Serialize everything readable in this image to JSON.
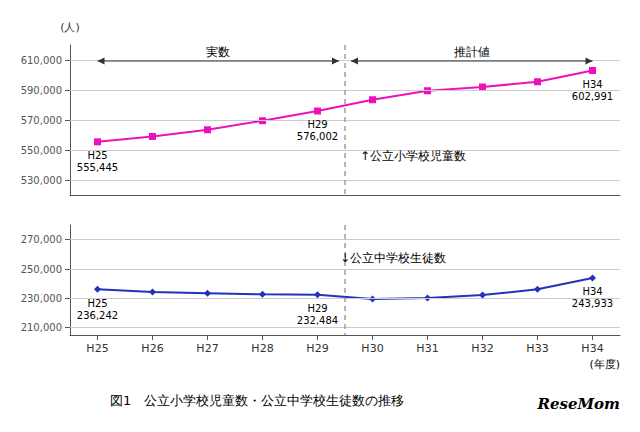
{
  "chart_data": [
    {
      "type": "line",
      "title": "図1　公立小学校児童数・公立中学校生徒数の推移",
      "categories": [
        "H25",
        "H26",
        "H27",
        "H28",
        "H29",
        "H30",
        "H31",
        "H32",
        "H33",
        "H34"
      ],
      "series": [
        {
          "name": "↑公立小学校児童数",
          "color": "#EE11BB",
          "marker": "square",
          "values": [
            555445,
            559000,
            563500,
            569500,
            576002,
            583500,
            589500,
            592000,
            595500,
            602991
          ]
        }
      ],
      "ylabel": "(人)",
      "ylim": [
        520000,
        620000
      ],
      "yticks": [
        {
          "value": 530000,
          "label": "530,000"
        },
        {
          "value": 550000,
          "label": "550,000"
        },
        {
          "value": 570000,
          "label": "570,000"
        },
        {
          "value": 590000,
          "label": "590,000"
        },
        {
          "value": 610000,
          "label": "610,000"
        }
      ],
      "grid": true,
      "tick_labels": "y",
      "annotations": [
        {
          "text": "実数",
          "span": [
            "H25",
            "H29"
          ]
        },
        {
          "text": "推計値",
          "span": [
            "H30",
            "H34"
          ]
        },
        {
          "x": "H25",
          "y": 555445,
          "text": [
            "H25",
            "555,445"
          ]
        },
        {
          "x": "H29",
          "y": 576002,
          "text": [
            "H29",
            "576,002"
          ]
        },
        {
          "x": "H34",
          "y": 602991,
          "text": [
            "H34",
            "602,991"
          ]
        },
        {
          "text": "ReseMom"
        }
      ]
    },
    {
      "type": "line",
      "categories": [
        "H25",
        "H26",
        "H27",
        "H28",
        "H29",
        "H30",
        "H31",
        "H32",
        "H33",
        "H34"
      ],
      "series": [
        {
          "name": "↓公立中学校生徒数",
          "color": "#2233BB",
          "marker": "diamond",
          "values": [
            236242,
            234300,
            233500,
            232700,
            232484,
            229500,
            230200,
            232200,
            236200,
            243933
          ]
        }
      ],
      "xlabel": "(年度)",
      "ylim": [
        205000,
        280000
      ],
      "yticks": [
        {
          "value": 210000,
          "label": "210,000"
        },
        {
          "value": 230000,
          "label": "230,000"
        },
        {
          "value": 250000,
          "label": "250,000"
        },
        {
          "value": 270000,
          "label": "270,000"
        }
      ],
      "grid": true,
      "annotations": [
        {
          "x": "H25",
          "y": 236242,
          "text": [
            "H25",
            "236,242"
          ]
        },
        {
          "x": "H29",
          "y": 232484,
          "text": [
            "H29",
            "232,484"
          ]
        },
        {
          "x": "H34",
          "y": 243933,
          "text": [
            "H34",
            "243,933"
          ]
        }
      ]
    }
  ]
}
